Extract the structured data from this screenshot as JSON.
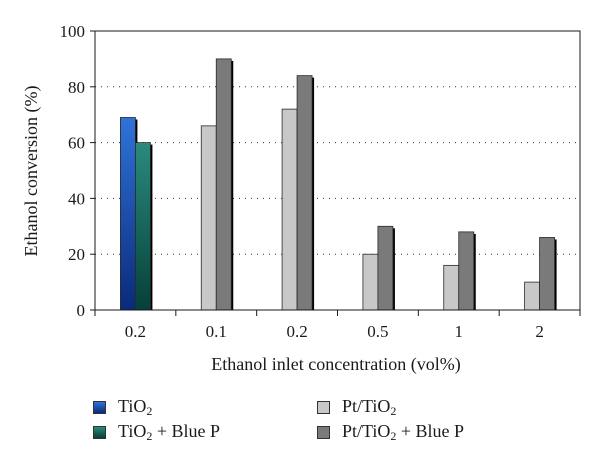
{
  "chart_data": {
    "type": "bar",
    "categories": [
      "0.2",
      "0.1",
      "0.2",
      "0.5",
      "1",
      "2"
    ],
    "series": [
      {
        "name": "TiO2",
        "values": [
          69,
          null,
          null,
          null,
          null,
          null
        ],
        "color": "#1f5cc4"
      },
      {
        "name": "TiO2 + Blue P",
        "values": [
          60,
          null,
          null,
          null,
          null,
          null
        ],
        "color": "#137266"
      },
      {
        "name": "Pt/TiO2",
        "values": [
          null,
          66,
          72,
          20,
          16,
          10
        ],
        "color": "#c8c8c8"
      },
      {
        "name": "Pt/TiO2 + Blue P",
        "values": [
          null,
          90,
          84,
          30,
          28,
          26
        ],
        "color": "#7a7a7a"
      }
    ],
    "xlabel": "Ethanol inlet concentration (vol%)",
    "ylabel": "Ethanol conversion (%)",
    "ylim": [
      0,
      100
    ],
    "yticks": [
      "0",
      "20",
      "40",
      "60",
      "80",
      "100"
    ],
    "grid": "horizontal dotted",
    "legend_position": "bottom"
  },
  "legend": {
    "tio2": {
      "main": "TiO",
      "sub": "2",
      "suffix": ""
    },
    "tio2_bp": {
      "main": "TiO",
      "sub": "2",
      "suffix": " + Blue P"
    },
    "pt_tio2": {
      "main": "Pt/TiO",
      "sub": "2",
      "suffix": ""
    },
    "pt_tio2_bp": {
      "main": "Pt/TiO",
      "sub": "2",
      "suffix": " + Blue P"
    }
  }
}
